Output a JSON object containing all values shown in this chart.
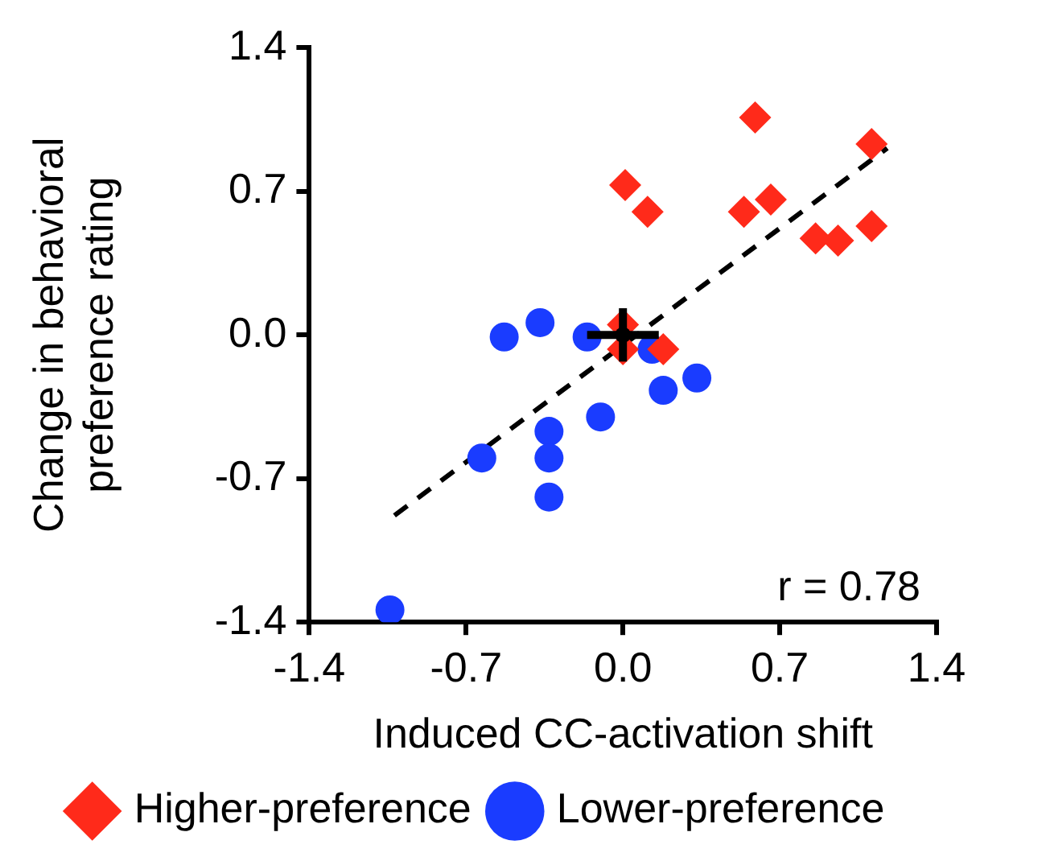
{
  "chart_data": {
    "type": "scatter",
    "xlabel": "Induced CC-activation shift",
    "ylabel": "Change in behavioral preference rating",
    "xlim": [
      -1.4,
      1.4
    ],
    "ylim": [
      -1.4,
      1.4
    ],
    "xticks": [
      -1.4,
      -0.7,
      {
        "value": 0,
        "label": "0.0"
      },
      0.7,
      1.4
    ],
    "yticks": [
      -1.4,
      -0.7,
      {
        "value": 0,
        "label": "0.0"
      },
      0.7,
      1.4
    ],
    "grid": false,
    "legend": "bottom",
    "annotations": [
      "r = 0.78"
    ],
    "series": [
      {
        "name": "Higher-preference",
        "color": "#ff2a1a",
        "marker": "diamond",
        "x": [
          0.59,
          1.11,
          0.01,
          0.11,
          0.54,
          0.66,
          0.86,
          0.96,
          1.11,
          0.0,
          0.0,
          0.18
        ],
        "values": [
          1.06,
          0.93,
          0.73,
          0.6,
          0.6,
          0.66,
          0.47,
          0.46,
          0.53,
          0.05,
          -0.07,
          -0.07
        ]
      },
      {
        "name": "Lower-preference",
        "color": "#1a3cff",
        "marker": "circle",
        "x": [
          -0.53,
          -0.37,
          -0.16,
          0.13,
          0.33,
          0.18,
          -0.1,
          -0.33,
          -0.63,
          -0.33,
          -0.33,
          -1.04
        ],
        "values": [
          -0.01,
          0.06,
          -0.01,
          -0.07,
          -0.21,
          -0.27,
          -0.4,
          -0.47,
          -0.6,
          -0.6,
          -0.79,
          -1.34
        ]
      },
      {
        "type": "line",
        "color": "#000000",
        "line_style": "dashed",
        "marker": "none",
        "x": [
          -1.02,
          1.18
        ],
        "values": [
          -0.88,
          0.91
        ]
      },
      {
        "color": "#000000",
        "marker": "circle",
        "x": [
          0
        ],
        "values": [
          0
        ],
        "errors": [
          0.13
        ],
        "xerrors": [
          0.16
        ]
      }
    ]
  }
}
